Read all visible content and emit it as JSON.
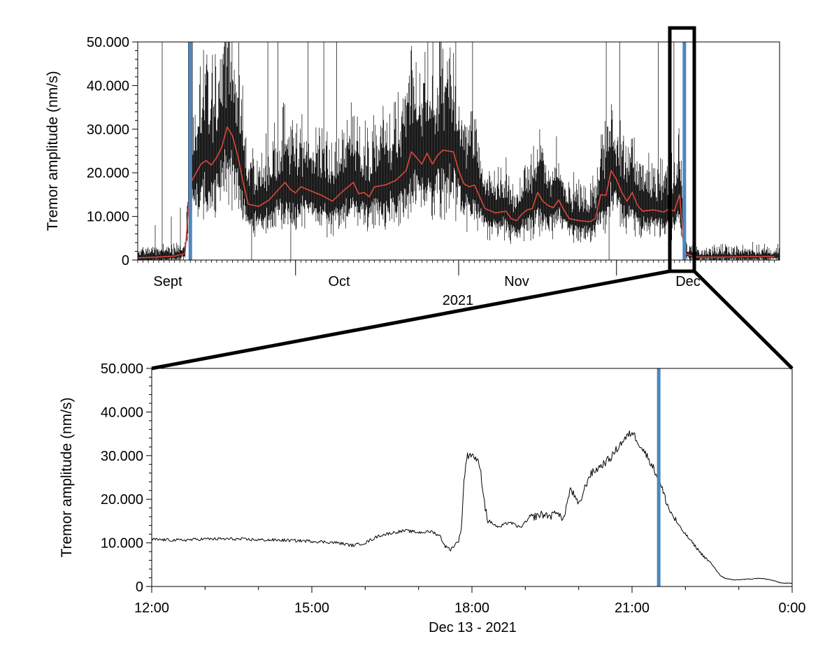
{
  "colors": {
    "signal": "#000000",
    "trend": "#e0463a",
    "marker": "#4e87bd",
    "frame": "#000000"
  },
  "chart_data": [
    {
      "type": "line",
      "ylabel": "Tremor amplitude (nm/s)",
      "xlabel": "2021",
      "ylim": [
        0,
        50000
      ],
      "y_tick_labels": [
        "0",
        "10.000",
        "20.000",
        "30.000",
        "40.000",
        "50.000"
      ],
      "x_tick_labels": [
        "Sept",
        "Oct",
        "Nov",
        "Dec"
      ],
      "x_domain": [
        "2021-09-01",
        "2021-12-31"
      ],
      "grid": false,
      "series": [
        {
          "role": "signal",
          "color": "#000000",
          "note_keypoints": "approximate raw tremor amplitude envelope"
        },
        {
          "role": "trend",
          "color": "#e0463a"
        }
      ],
      "trend_points": [
        [
          "2021-09-01",
          500
        ],
        [
          "2021-09-05",
          700
        ],
        [
          "2021-09-08",
          900
        ],
        [
          "2021-09-10",
          1500
        ],
        [
          "2021-09-11",
          17500
        ],
        [
          "2021-09-13",
          22000
        ],
        [
          "2021-09-14",
          22800
        ],
        [
          "2021-09-15",
          21800
        ],
        [
          "2021-09-16",
          23500
        ],
        [
          "2021-09-17",
          26000
        ],
        [
          "2021-09-18",
          30500
        ],
        [
          "2021-09-19",
          28500
        ],
        [
          "2021-09-20",
          24000
        ],
        [
          "2021-09-21",
          18000
        ],
        [
          "2021-09-22",
          12800
        ],
        [
          "2021-09-24",
          12300
        ],
        [
          "2021-09-26",
          13800
        ],
        [
          "2021-09-28",
          16500
        ],
        [
          "2021-09-29",
          17800
        ],
        [
          "2021-09-30",
          16200
        ],
        [
          "2021-10-01",
          15400
        ],
        [
          "2021-10-02",
          16800
        ],
        [
          "2021-10-04",
          15800
        ],
        [
          "2021-10-06",
          14800
        ],
        [
          "2021-10-08",
          13500
        ],
        [
          "2021-10-10",
          15800
        ],
        [
          "2021-10-12",
          17800
        ],
        [
          "2021-10-13",
          15200
        ],
        [
          "2021-10-14",
          15500
        ],
        [
          "2021-10-15",
          14500
        ],
        [
          "2021-10-16",
          16800
        ],
        [
          "2021-10-18",
          17200
        ],
        [
          "2021-10-20",
          18200
        ],
        [
          "2021-10-22",
          20500
        ],
        [
          "2021-10-23",
          24800
        ],
        [
          "2021-10-24",
          23500
        ],
        [
          "2021-10-25",
          22000
        ],
        [
          "2021-10-26",
          24500
        ],
        [
          "2021-10-27",
          22000
        ],
        [
          "2021-10-28",
          24000
        ],
        [
          "2021-10-29",
          25200
        ],
        [
          "2021-10-31",
          24800
        ],
        [
          "2021-11-01",
          20500
        ],
        [
          "2021-11-02",
          17500
        ],
        [
          "2021-11-03",
          16800
        ],
        [
          "2021-11-04",
          17200
        ],
        [
          "2021-11-05",
          14500
        ],
        [
          "2021-11-06",
          11800
        ],
        [
          "2021-11-08",
          10800
        ],
        [
          "2021-11-10",
          11200
        ],
        [
          "2021-11-11",
          9500
        ],
        [
          "2021-11-12",
          9000
        ],
        [
          "2021-11-13",
          10500
        ],
        [
          "2021-11-14",
          11500
        ],
        [
          "2021-11-15",
          11800
        ],
        [
          "2021-11-16",
          15500
        ],
        [
          "2021-11-17",
          13500
        ],
        [
          "2021-11-18",
          12500
        ],
        [
          "2021-11-19",
          12000
        ],
        [
          "2021-11-20",
          13800
        ],
        [
          "2021-11-21",
          11500
        ],
        [
          "2021-11-22",
          9500
        ],
        [
          "2021-11-24",
          9000
        ],
        [
          "2021-11-26",
          8800
        ],
        [
          "2021-11-27",
          9500
        ],
        [
          "2021-11-28",
          15000
        ],
        [
          "2021-11-29",
          14800
        ],
        [
          "2021-11-30",
          20500
        ],
        [
          "2021-12-01",
          18500
        ],
        [
          "2021-12-02",
          15500
        ],
        [
          "2021-12-03",
          13500
        ],
        [
          "2021-12-04",
          15500
        ],
        [
          "2021-12-05",
          12500
        ],
        [
          "2021-12-06",
          11200
        ],
        [
          "2021-12-08",
          11500
        ],
        [
          "2021-12-10",
          11000
        ],
        [
          "2021-12-11",
          11800
        ],
        [
          "2021-12-12",
          11200
        ],
        [
          "2021-12-13",
          15000
        ],
        [
          "2021-12-13T22:00",
          1500
        ],
        [
          "2021-12-16",
          700
        ],
        [
          "2021-12-20",
          650
        ],
        [
          "2021-12-25",
          750
        ],
        [
          "2021-12-31",
          800
        ]
      ],
      "marker_dates": [
        "2021-09-11",
        "2021-12-13T21:40"
      ],
      "zoom_window": [
        "2021-12-12",
        "2021-12-14"
      ]
    },
    {
      "type": "line",
      "ylabel": "Tremor amplitude (nm/s)",
      "xlabel": "Dec 13 - 2021",
      "ylim": [
        0,
        50000
      ],
      "y_tick_labels": [
        "0",
        "10.000",
        "20.000",
        "30.000",
        "40.000",
        "50.000"
      ],
      "x_tick_labels": [
        "12:00",
        "15:00",
        "18:00",
        "21:00",
        "0:00"
      ],
      "x_domain_hours": [
        12,
        24
      ],
      "grid": false,
      "series_color": "#000000",
      "points": [
        [
          12.0,
          10800
        ],
        [
          12.5,
          10600
        ],
        [
          13.0,
          10900
        ],
        [
          13.5,
          10900
        ],
        [
          14.0,
          10700
        ],
        [
          14.5,
          10600
        ],
        [
          15.0,
          10400
        ],
        [
          15.5,
          10000
        ],
        [
          15.75,
          9400
        ],
        [
          16.0,
          10000
        ],
        [
          16.25,
          11600
        ],
        [
          16.5,
          12300
        ],
        [
          16.75,
          12800
        ],
        [
          17.0,
          12400
        ],
        [
          17.25,
          12600
        ],
        [
          17.4,
          11600
        ],
        [
          17.5,
          9200
        ],
        [
          17.6,
          8500
        ],
        [
          17.75,
          10500
        ],
        [
          17.8,
          13200
        ],
        [
          17.85,
          24000
        ],
        [
          17.9,
          29500
        ],
        [
          17.95,
          30500
        ],
        [
          18.05,
          29800
        ],
        [
          18.15,
          27500
        ],
        [
          18.25,
          18000
        ],
        [
          18.3,
          15200
        ],
        [
          18.5,
          13500
        ],
        [
          18.7,
          14800
        ],
        [
          18.9,
          13500
        ],
        [
          19.1,
          15800
        ],
        [
          19.3,
          16500
        ],
        [
          19.5,
          16200
        ],
        [
          19.6,
          17500
        ],
        [
          19.7,
          15000
        ],
        [
          19.85,
          22500
        ],
        [
          20.0,
          18500
        ],
        [
          20.2,
          25500
        ],
        [
          20.4,
          27500
        ],
        [
          20.6,
          29500
        ],
        [
          20.8,
          33000
        ],
        [
          21.0,
          35500
        ],
        [
          21.2,
          31500
        ],
        [
          21.35,
          28500
        ],
        [
          21.5,
          24500
        ],
        [
          21.7,
          17500
        ],
        [
          21.9,
          13500
        ],
        [
          22.1,
          10500
        ],
        [
          22.3,
          7500
        ],
        [
          22.5,
          5000
        ],
        [
          22.65,
          2600
        ],
        [
          22.75,
          1800
        ],
        [
          22.9,
          1500
        ],
        [
          23.2,
          1700
        ],
        [
          23.4,
          1900
        ],
        [
          23.6,
          1500
        ],
        [
          23.8,
          800
        ],
        [
          24.0,
          700
        ]
      ],
      "marker_hour": 21.5
    }
  ]
}
